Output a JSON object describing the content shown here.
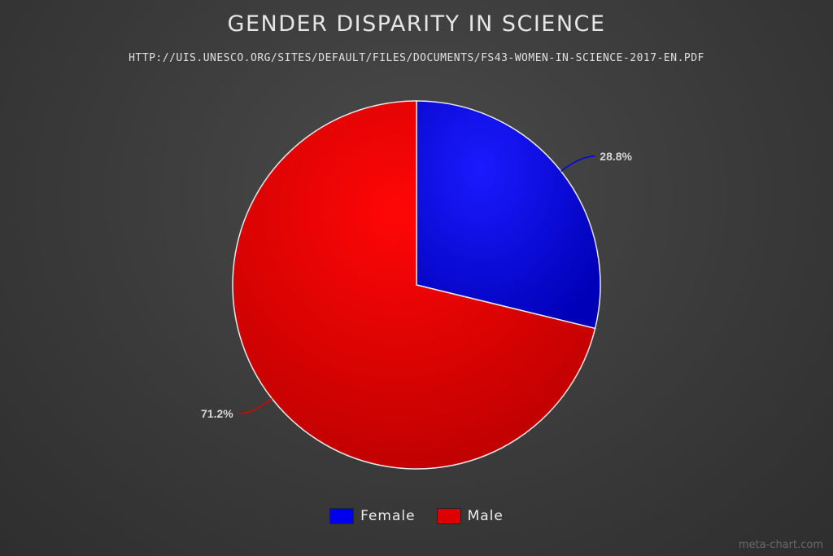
{
  "chart_data": {
    "type": "pie",
    "title": "GENDER DISPARITY IN SCIENCE",
    "subtitle": "HTTP://UIS.UNESCO.ORG/SITES/DEFAULT/FILES/DOCUMENTS/FS43-WOMEN-IN-SCIENCE-2017-EN.PDF",
    "slices": [
      {
        "label": "Female",
        "value": 28.8,
        "display": "28.8%",
        "color": "#0000ee"
      },
      {
        "label": "Male",
        "value": 71.2,
        "display": "71.2%",
        "color": "#dd0000"
      }
    ],
    "legend_position": "bottom"
  },
  "watermark": "meta-chart.com"
}
